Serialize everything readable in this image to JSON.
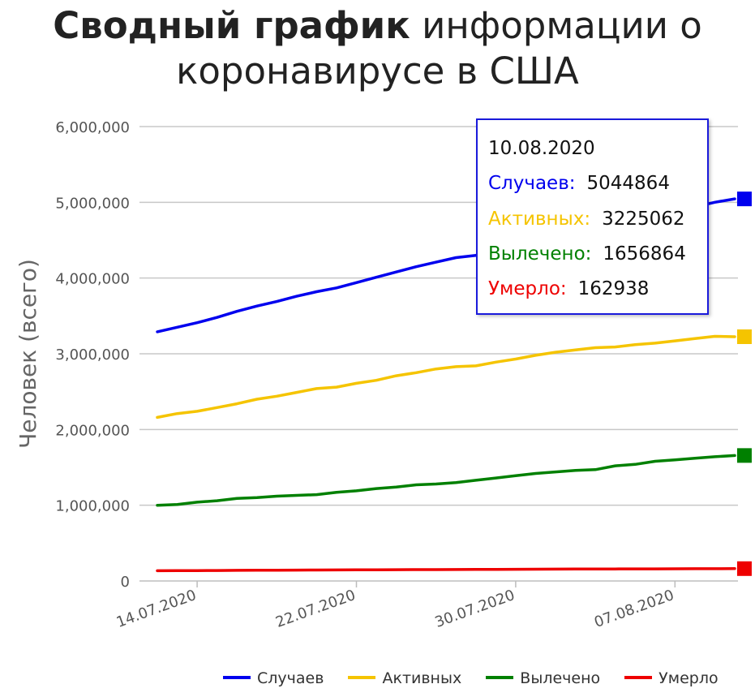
{
  "title": {
    "bold": "Сводный график",
    "rest": "информации о коронавирусе в США"
  },
  "chart_data": {
    "type": "line",
    "title": "Сводный график информации о коронавирусе в США",
    "ylabel": "Человек (всего)",
    "xlabel": "",
    "ylim": [
      0,
      6000000
    ],
    "yticks": [
      0,
      1000000,
      2000000,
      3000000,
      4000000,
      5000000,
      6000000
    ],
    "ytick_labels": [
      "0",
      "1,000,000",
      "2,000,000",
      "3,000,000",
      "4,000,000",
      "5,000,000",
      "6,000,000"
    ],
    "xtick_labels": [
      "14.07.2020",
      "22.07.2020",
      "30.07.2020",
      "07.08.2020"
    ],
    "xtick_index": [
      2,
      10,
      18,
      26
    ],
    "x": [
      "12.07.2020",
      "13.07.2020",
      "14.07.2020",
      "15.07.2020",
      "16.07.2020",
      "17.07.2020",
      "18.07.2020",
      "19.07.2020",
      "20.07.2020",
      "21.07.2020",
      "22.07.2020",
      "23.07.2020",
      "24.07.2020",
      "25.07.2020",
      "26.07.2020",
      "27.07.2020",
      "28.07.2020",
      "29.07.2020",
      "30.07.2020",
      "31.07.2020",
      "01.08.2020",
      "02.08.2020",
      "03.08.2020",
      "04.08.2020",
      "05.08.2020",
      "06.08.2020",
      "07.08.2020",
      "08.08.2020",
      "09.08.2020",
      "10.08.2020"
    ],
    "grid": true,
    "legend_position": "bottom",
    "series": [
      {
        "name": "Случаев",
        "color": "#0000ee",
        "values": [
          3290000,
          3350000,
          3410000,
          3480000,
          3560000,
          3630000,
          3690000,
          3760000,
          3820000,
          3870000,
          3940000,
          4010000,
          4080000,
          4150000,
          4210000,
          4270000,
          4300000,
          4370000,
          4440000,
          4500000,
          4570000,
          4620000,
          4670000,
          4720000,
          4770000,
          4830000,
          4880000,
          4940000,
          5000000,
          5044864
        ]
      },
      {
        "name": "Активных",
        "color": "#f5c400",
        "values": [
          2160000,
          2210000,
          2240000,
          2290000,
          2340000,
          2400000,
          2440000,
          2490000,
          2540000,
          2560000,
          2610000,
          2650000,
          2710000,
          2750000,
          2800000,
          2830000,
          2840000,
          2890000,
          2930000,
          2980000,
          3020000,
          3050000,
          3080000,
          3090000,
          3120000,
          3140000,
          3170000,
          3200000,
          3230000,
          3225062
        ]
      },
      {
        "name": "Вылечено",
        "color": "#008000",
        "values": [
          1000000,
          1010000,
          1040000,
          1060000,
          1090000,
          1100000,
          1120000,
          1130000,
          1140000,
          1170000,
          1190000,
          1220000,
          1240000,
          1270000,
          1280000,
          1300000,
          1330000,
          1360000,
          1390000,
          1420000,
          1440000,
          1460000,
          1470000,
          1520000,
          1540000,
          1580000,
          1600000,
          1620000,
          1640000,
          1656864
        ]
      },
      {
        "name": "Умерло",
        "color": "#ee0000",
        "values": [
          135000,
          136000,
          137000,
          138500,
          140000,
          141500,
          142500,
          143500,
          144500,
          145500,
          146500,
          147500,
          148500,
          149500,
          150500,
          151500,
          152500,
          153500,
          154500,
          155500,
          156500,
          157500,
          158500,
          159000,
          159500,
          160000,
          160500,
          161500,
          162300,
          162938
        ]
      }
    ]
  },
  "tooltip": {
    "date": "10.08.2020",
    "rows": [
      {
        "label": "Случаев:",
        "value": "5044864",
        "color": "#0000ee"
      },
      {
        "label": "Активных:",
        "value": "3225062",
        "color": "#f5c400"
      },
      {
        "label": "Вылечено:",
        "value": "1656864",
        "color": "#008000"
      },
      {
        "label": "Умерло:",
        "value": "162938",
        "color": "#ee0000"
      }
    ]
  },
  "legend": [
    {
      "label": "Случаев",
      "color": "#0000ee"
    },
    {
      "label": "Активных",
      "color": "#f5c400"
    },
    {
      "label": "Вылечено",
      "color": "#008000"
    },
    {
      "label": "Умерло",
      "color": "#ee0000"
    }
  ]
}
